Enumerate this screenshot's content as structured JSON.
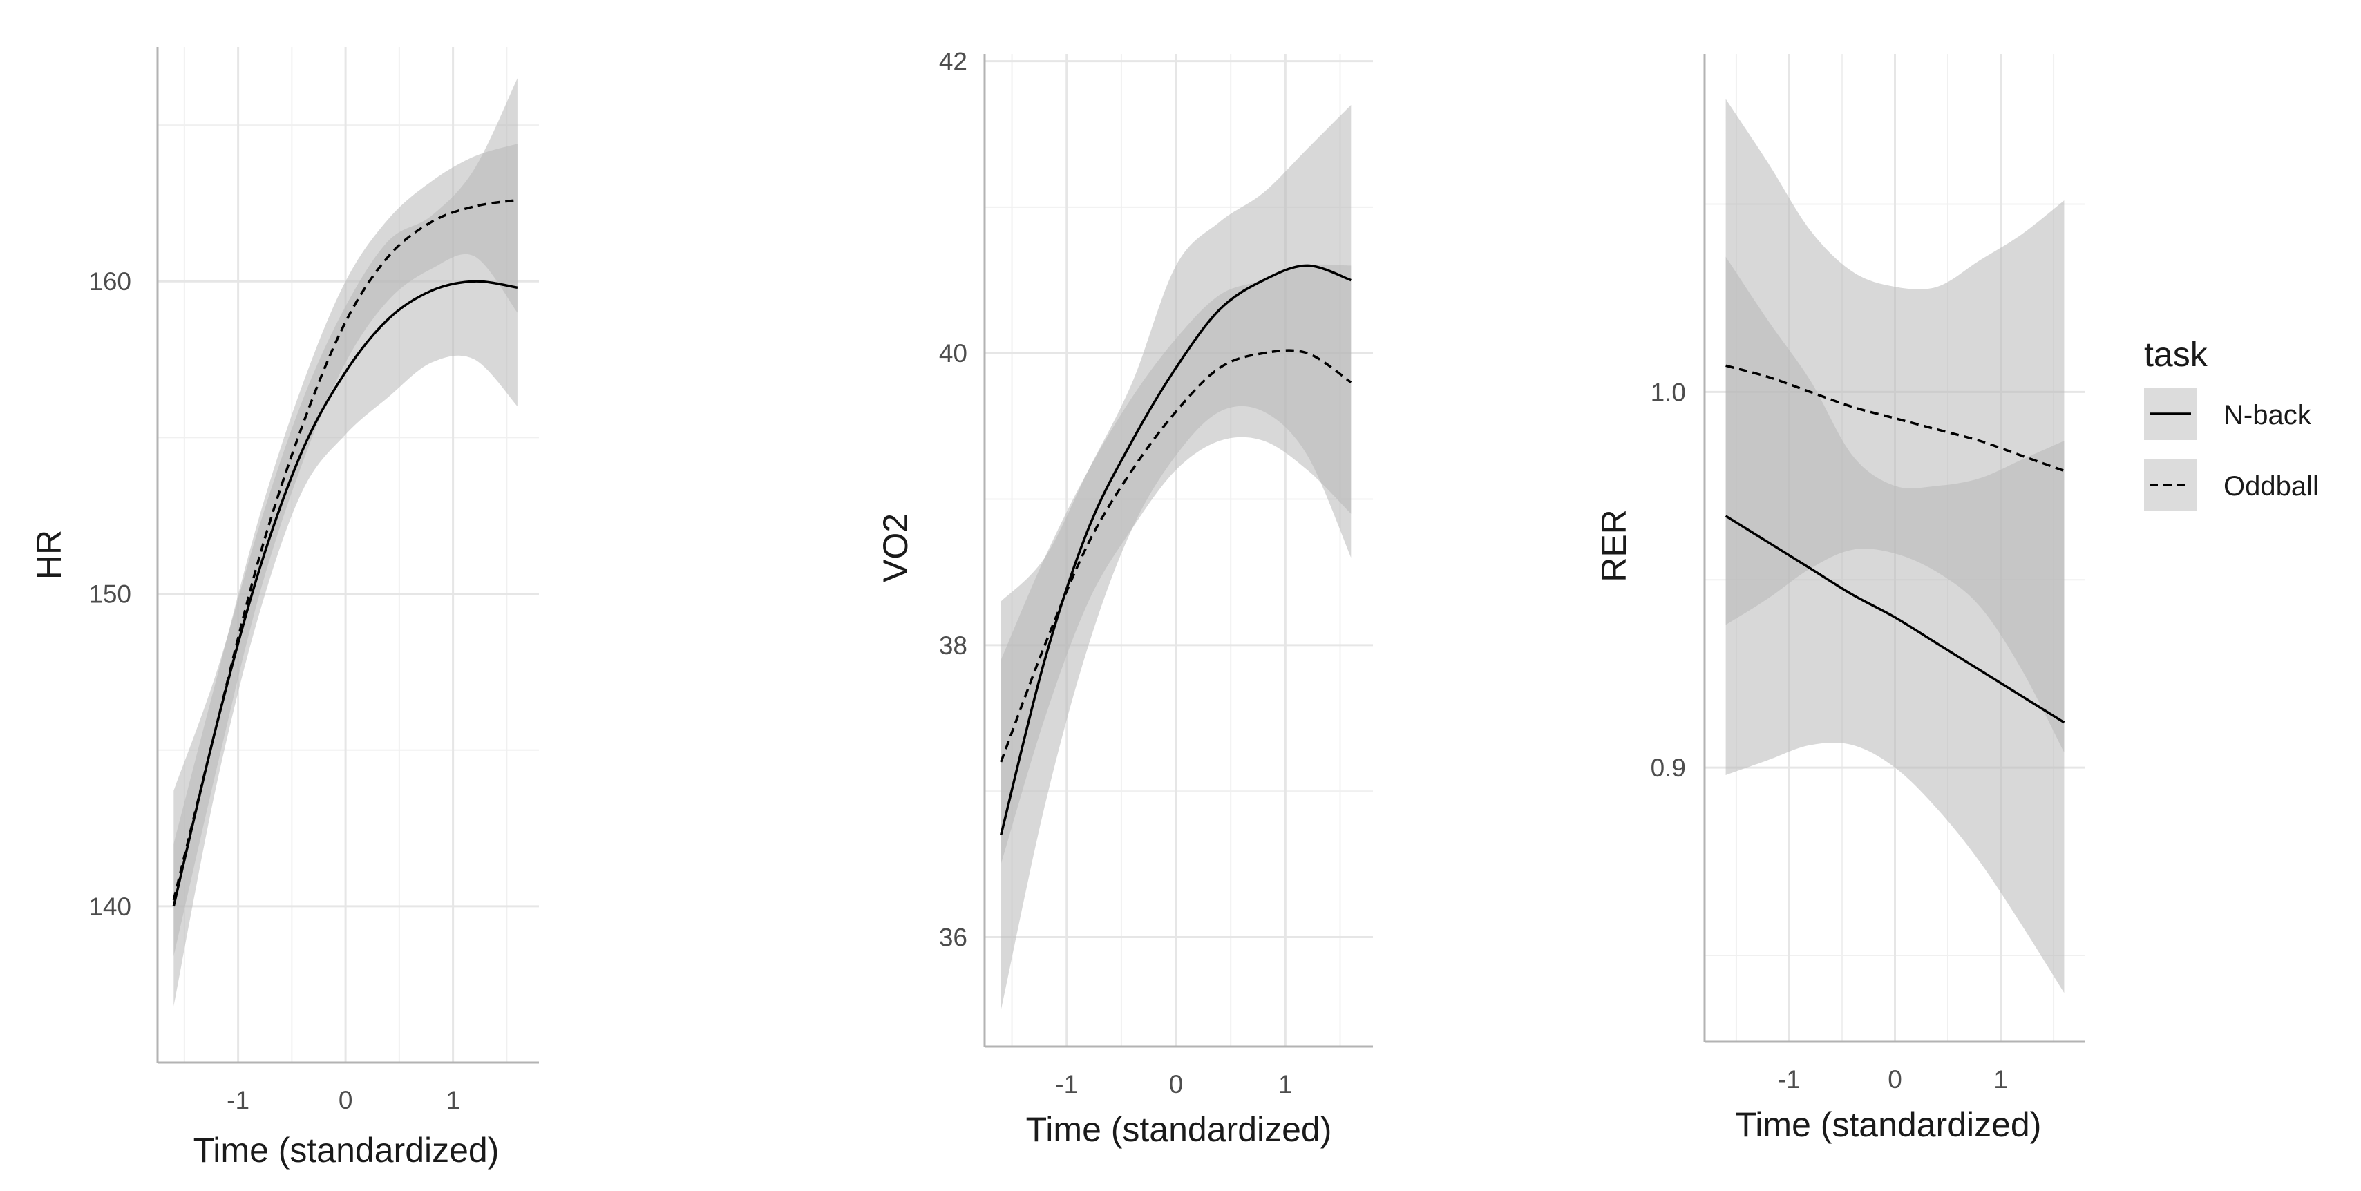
{
  "chart_data": [
    {
      "type": "line",
      "panel": "HR",
      "xlabel": "Time (standardized)",
      "ylabel": "HR",
      "xlim": [
        -1.75,
        1.8
      ],
      "ylim": [
        135,
        167.5
      ],
      "x_ticks": [
        -1,
        0,
        1
      ],
      "y_ticks": [
        140,
        150,
        160
      ],
      "grid": true,
      "series": [
        {
          "name": "N-back",
          "linetype": "solid",
          "x": [
            -1.6,
            -1.2,
            -0.8,
            -0.4,
            0.0,
            0.4,
            0.8,
            1.2,
            1.6
          ],
          "y": [
            140.0,
            145.8,
            150.8,
            154.6,
            157.1,
            158.8,
            159.7,
            160.0,
            159.8
          ],
          "lower": [
            136.8,
            143.9,
            149.4,
            153.3,
            155.1,
            156.3,
            157.4,
            157.5,
            156.0
          ],
          "upper": [
            143.7,
            147.5,
            152.2,
            156.2,
            159.2,
            161.3,
            162.1,
            163.6,
            166.5
          ]
        },
        {
          "name": "Oddball",
          "linetype": "dashed",
          "x": [
            -1.6,
            -1.2,
            -0.8,
            -0.4,
            0.0,
            0.4,
            0.8,
            1.2,
            1.6
          ],
          "y": [
            140.2,
            145.8,
            151.2,
            155.4,
            158.7,
            160.8,
            161.9,
            162.4,
            162.6
          ],
          "lower": [
            138.4,
            144.4,
            150.0,
            154.2,
            157.4,
            159.4,
            160.4,
            160.8,
            159.0
          ],
          "upper": [
            142.0,
            147.3,
            152.5,
            156.7,
            160.0,
            162.0,
            163.2,
            164.0,
            164.4
          ]
        }
      ]
    },
    {
      "type": "line",
      "panel": "VO2",
      "xlabel": "Time (standardized)",
      "ylabel": "VO2",
      "xlim": [
        -1.75,
        1.8
      ],
      "ylim": [
        35.25,
        42.05
      ],
      "x_ticks": [
        -1,
        0,
        1
      ],
      "y_ticks": [
        36,
        38,
        40,
        42
      ],
      "grid": true,
      "series": [
        {
          "name": "N-back",
          "linetype": "solid",
          "x": [
            -1.6,
            -1.2,
            -0.8,
            -0.4,
            0.0,
            0.4,
            0.8,
            1.2,
            1.6
          ],
          "y": [
            36.7,
            37.9,
            38.8,
            39.4,
            39.9,
            40.3,
            40.5,
            40.6,
            40.5
          ],
          "lower": [
            35.5,
            36.9,
            38.0,
            38.8,
            39.3,
            39.6,
            39.6,
            39.3,
            38.6
          ],
          "upper": [
            38.3,
            38.6,
            39.2,
            39.8,
            40.6,
            40.9,
            41.1,
            41.4,
            41.7
          ]
        },
        {
          "name": "Oddball",
          "linetype": "dashed",
          "x": [
            -1.6,
            -1.2,
            -0.8,
            -0.4,
            0.0,
            0.4,
            0.8,
            1.2,
            1.6
          ],
          "y": [
            37.2,
            38.0,
            38.7,
            39.2,
            39.6,
            39.9,
            40.0,
            40.0,
            39.8
          ],
          "lower": [
            36.5,
            37.5,
            38.3,
            38.8,
            39.2,
            39.4,
            39.4,
            39.2,
            38.9
          ],
          "upper": [
            37.9,
            38.6,
            39.2,
            39.7,
            40.1,
            40.4,
            40.5,
            40.6,
            40.6
          ]
        }
      ]
    },
    {
      "type": "line",
      "panel": "RER",
      "xlabel": "Time (standardized)",
      "ylabel": "RER",
      "xlim": [
        -1.8,
        1.8
      ],
      "ylim": [
        0.827,
        1.09
      ],
      "x_ticks": [
        -1,
        0,
        1
      ],
      "y_ticks": [
        0.9,
        1.0
      ],
      "grid": true,
      "series": [
        {
          "name": "N-back",
          "linetype": "solid",
          "x": [
            -1.6,
            -1.2,
            -0.8,
            -0.4,
            0.0,
            0.4,
            0.8,
            1.2,
            1.6
          ],
          "y": [
            0.967,
            0.96,
            0.953,
            0.946,
            0.94,
            0.933,
            0.926,
            0.919,
            0.912
          ],
          "lower": [
            0.898,
            0.902,
            0.906,
            0.906,
            0.9,
            0.889,
            0.875,
            0.858,
            0.84
          ],
          "upper": [
            1.078,
            1.061,
            1.043,
            1.032,
            1.028,
            1.028,
            1.035,
            1.042,
            1.051
          ]
        },
        {
          "name": "Oddball",
          "linetype": "dashed",
          "x": [
            -1.6,
            -1.2,
            -0.8,
            -0.4,
            0.0,
            0.4,
            0.8,
            1.2,
            1.6
          ],
          "y": [
            1.007,
            1.004,
            1.0,
            0.996,
            0.993,
            0.99,
            0.987,
            0.983,
            0.979
          ],
          "lower": [
            0.938,
            0.945,
            0.953,
            0.958,
            0.957,
            0.952,
            0.943,
            0.926,
            0.904
          ],
          "upper": [
            1.036,
            1.019,
            1.003,
            0.983,
            0.975,
            0.975,
            0.977,
            0.982,
            0.987
          ]
        }
      ]
    }
  ],
  "legend": {
    "title": "task",
    "placement": "right",
    "items": [
      {
        "label": "N-back",
        "linetype": "solid"
      },
      {
        "label": "Oddball",
        "linetype": "dashed"
      }
    ]
  }
}
